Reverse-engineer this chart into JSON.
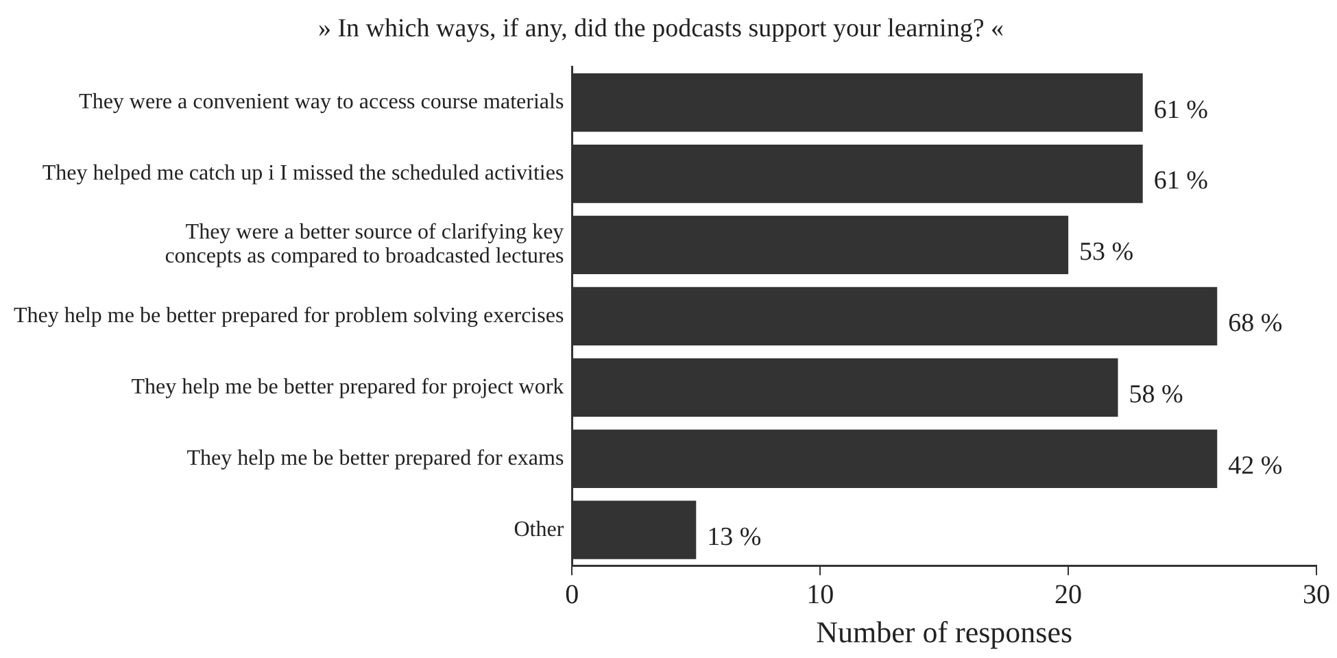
{
  "chart_data": {
    "type": "bar",
    "orientation": "horizontal",
    "title": "» In which ways, if any, did the podcasts support your learning? «",
    "xlabel": "Number of responses",
    "categories": [
      "They were a convenient way to access course materials",
      "They helped me catch up i I missed the scheduled activities",
      "They were a better source of clarifying key\nconcepts as compared to broadcasted lectures",
      "They help me be better prepared for problem solving exercises",
      "They help me be better prepared for project work",
      "They help me be better prepared for exams",
      "Other"
    ],
    "values": [
      23,
      23,
      20,
      26,
      22,
      26,
      5
    ],
    "annotations": [
      {
        "text": "61 %",
        "x": 23,
        "y": "They were a convenient way to access course materials"
      },
      {
        "text": "61 %",
        "x": 23,
        "y": "They helped me catch up i I missed the scheduled activities"
      },
      {
        "text": "53 %",
        "x": 20,
        "y": "They were a better source of clarifying key\nconcepts as compared to broadcasted lectures"
      },
      {
        "text": "68 %",
        "x": 26,
        "y": "They help me be better prepared for problem solving exercises"
      },
      {
        "text": "58 %",
        "x": 22,
        "y": "They help me be better prepared for project work"
      },
      {
        "text": "42 %",
        "x": 26,
        "y": "They help me be better prepared for exams"
      },
      {
        "text": "13 %",
        "x": 5,
        "y": "Other"
      }
    ],
    "color": "#333333",
    "xlim": [
      0,
      30
    ],
    "xticks": [
      0,
      10,
      20,
      30
    ],
    "grid": false,
    "legend": false
  }
}
